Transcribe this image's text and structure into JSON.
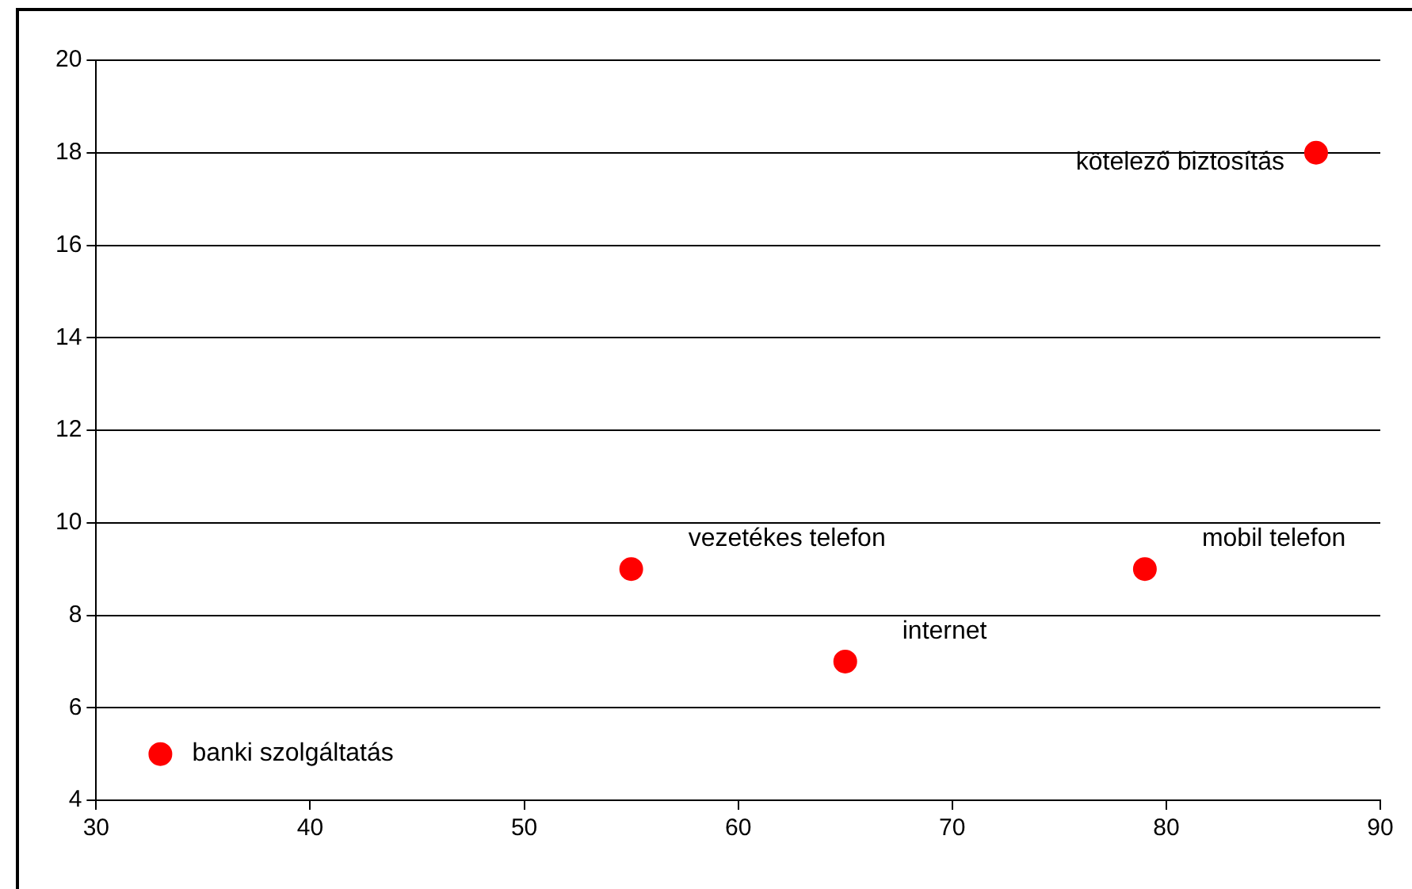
{
  "chart_data": {
    "type": "scatter",
    "x": [
      33,
      55,
      65,
      79,
      87
    ],
    "values": [
      5,
      9,
      7,
      9,
      18
    ],
    "color": "#ff0000",
    "marker": "circle",
    "xlim": [
      30,
      90
    ],
    "xticks": [
      30,
      40,
      50,
      60,
      70,
      80,
      90
    ],
    "ylim": [
      4,
      20
    ],
    "yticks": [
      4,
      6,
      8,
      10,
      12,
      14,
      16,
      18,
      20
    ],
    "grid": "y",
    "legend": false,
    "annotations": [
      {
        "text": "banki szolgáltatás",
        "x": 33,
        "y": 5
      },
      {
        "text": "vezetékes telefon",
        "x": 55,
        "y": 9
      },
      {
        "text": "internet",
        "x": 65,
        "y": 7
      },
      {
        "text": "mobil telefon",
        "x": 79,
        "y": 9
      },
      {
        "text": "kötelező biztosítás",
        "x": 87,
        "y": 18
      }
    ]
  }
}
